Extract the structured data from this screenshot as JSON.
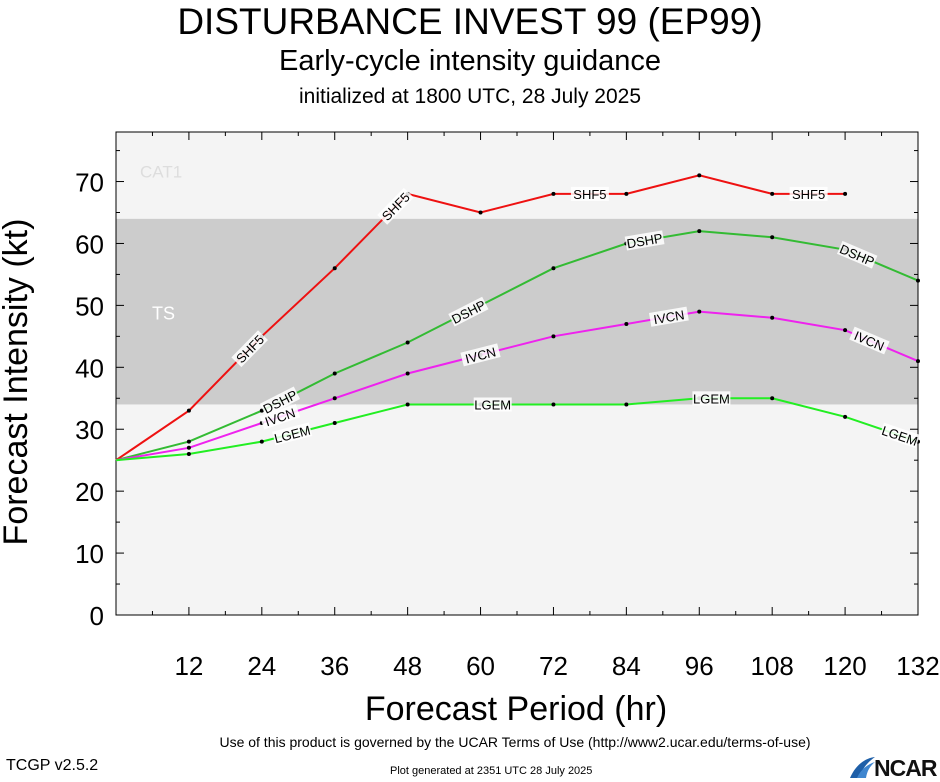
{
  "header": {
    "title": "DISTURBANCE INVEST 99 (EP99)",
    "subtitle": "Early-cycle intensity guidance",
    "initialized": "initialized at 1800 UTC, 28 July 2025"
  },
  "footer": {
    "terms": "Use of this product is governed by the UCAR Terms of Use (http://www2.ucar.edu/terms-of-use)",
    "version": "TCGP v2.5.2",
    "generated": "Plot generated at 2351 UTC   28 July 2025",
    "logo": "NCAR"
  },
  "chart_data": {
    "type": "line",
    "xlabel": "Forecast Period (hr)",
    "ylabel": "Forecast Intensity (kt)",
    "xlim": [
      0,
      132
    ],
    "ylim": [
      0,
      78
    ],
    "xticks": [
      12,
      24,
      36,
      48,
      60,
      72,
      84,
      96,
      108,
      120,
      132
    ],
    "yticks": [
      0,
      10,
      20,
      30,
      40,
      50,
      60,
      70
    ],
    "bands": [
      {
        "name": "TS",
        "from": 34,
        "to": 64,
        "color": "#cccccc"
      },
      {
        "name": "CAT1",
        "from": 64,
        "to": 78,
        "color": "#f4f4f4"
      }
    ],
    "below_band_color": "#f4f4f4",
    "series": [
      {
        "name": "SHF5",
        "color": "#ee1111",
        "x": [
          0,
          12,
          24,
          36,
          48,
          60,
          72,
          84,
          96,
          108,
          120
        ],
        "y": [
          25,
          33,
          45,
          56,
          68,
          65,
          68,
          68,
          71,
          68,
          68
        ],
        "labels_at": [
          22,
          46,
          78,
          114
        ]
      },
      {
        "name": "DSHP",
        "color": "#33bb33",
        "x": [
          0,
          12,
          24,
          36,
          48,
          60,
          72,
          84,
          96,
          108,
          120,
          132
        ],
        "y": [
          25,
          28,
          33,
          39,
          44,
          50,
          56,
          60,
          62,
          61,
          59,
          54
        ],
        "labels_at": [
          27,
          58,
          87,
          122
        ]
      },
      {
        "name": "IVCN",
        "color": "#ee22ee",
        "x": [
          0,
          12,
          24,
          36,
          48,
          60,
          72,
          84,
          96,
          108,
          120,
          132
        ],
        "y": [
          25,
          27,
          31,
          35,
          39,
          42,
          45,
          47,
          49,
          48,
          46,
          41
        ],
        "labels_at": [
          27,
          60,
          91,
          124
        ]
      },
      {
        "name": "LGEM",
        "color": "#22ee22",
        "x": [
          0,
          12,
          24,
          36,
          48,
          60,
          72,
          84,
          96,
          108,
          120,
          132
        ],
        "y": [
          25,
          26,
          28,
          31,
          34,
          34,
          34,
          34,
          35,
          35,
          32,
          28
        ],
        "labels_at": [
          29,
          62,
          98,
          129
        ]
      }
    ]
  }
}
